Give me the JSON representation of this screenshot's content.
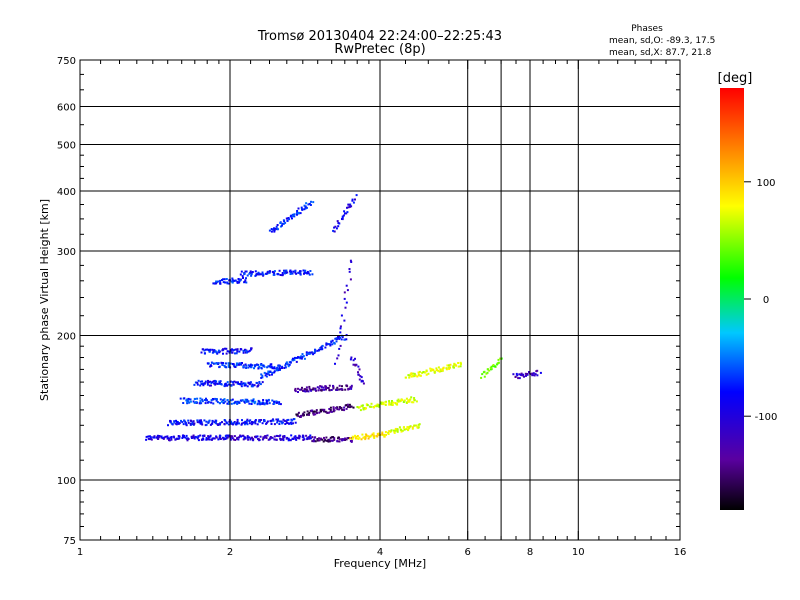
{
  "chart_data": {
    "type": "scatter",
    "title": "Tromsø 20130404 22:24:00–22:25:43",
    "subtitle": "RwPretec (8p)",
    "xlabel": "Frequency [MHz]",
    "ylabel": "Stationary phase Virtual Height [km]",
    "x_scale": "log",
    "y_scale": "log",
    "xlim": [
      1,
      16
    ],
    "ylim": [
      75,
      750
    ],
    "x_ticks": [
      1,
      2,
      4,
      6,
      8,
      10,
      16
    ],
    "x_tick_labels": [
      "1",
      "2",
      "4",
      "6",
      "8",
      "10",
      "16"
    ],
    "x_gridlines": [
      2,
      4,
      6,
      7,
      8,
      10
    ],
    "y_ticks": [
      75,
      100,
      200,
      300,
      400,
      500,
      600,
      750
    ],
    "y_tick_labels": [
      "75",
      "100",
      "200",
      "300",
      "400",
      "500",
      "600",
      "750"
    ],
    "y_gridlines": [
      100,
      200,
      300,
      400,
      500,
      600
    ],
    "grid": true,
    "stats": {
      "heading": "Phases",
      "line_o": "mean, sd,O: -89.3, 17.5",
      "line_x": "mean, sd,X:  87.7, 21.8"
    },
    "colorbar": {
      "label": "[deg]",
      "range": [
        -180,
        180
      ],
      "ticks": [
        100,
        0,
        -100
      ],
      "tick_labels": [
        "100",
        "0",
        "-100"
      ],
      "colormap": "rainbow (black-purple-blue-cyan-green-yellow-red)"
    },
    "traces": [
      {
        "f0": 1.35,
        "f1": 1.98,
        "h0": 123,
        "h1": 123,
        "phase": -112
      },
      {
        "f0": 1.98,
        "f1": 2.9,
        "h0": 123,
        "h1": 123,
        "phase": -118
      },
      {
        "f0": 2.9,
        "f1": 3.5,
        "h0": 122,
        "h1": 122,
        "phase": -145
      },
      {
        "f0": 3.5,
        "f1": 4.1,
        "h0": 123,
        "h1": 125,
        "phase": 92
      },
      {
        "f0": 4.1,
        "f1": 4.8,
        "h0": 126,
        "h1": 131,
        "phase": 72
      },
      {
        "f0": 1.5,
        "f1": 2.7,
        "h0": 132,
        "h1": 133,
        "phase": -100
      },
      {
        "f0": 2.7,
        "f1": 3.5,
        "h0": 137,
        "h1": 143,
        "phase": -150
      },
      {
        "f0": 3.6,
        "f1": 4.7,
        "h0": 142,
        "h1": 148,
        "phase": 65
      },
      {
        "f0": 1.6,
        "f1": 2.5,
        "h0": 147,
        "h1": 146,
        "phase": -88
      },
      {
        "f0": 2.7,
        "f1": 3.5,
        "h0": 155,
        "h1": 157,
        "phase": -140
      },
      {
        "f0": 1.7,
        "f1": 2.3,
        "h0": 160,
        "h1": 159,
        "phase": -98
      },
      {
        "f0": 1.8,
        "f1": 2.5,
        "h0": 175,
        "h1": 173,
        "phase": -92
      },
      {
        "f0": 1.75,
        "f1": 2.2,
        "h0": 186,
        "h1": 187,
        "phase": -100
      },
      {
        "f0": 2.3,
        "f1": 3.4,
        "h0": 165,
        "h1": 200,
        "phase": -92
      },
      {
        "f0": 2.1,
        "f1": 2.9,
        "h0": 270,
        "h1": 272,
        "phase": -97
      },
      {
        "f0": 1.85,
        "f1": 2.15,
        "h0": 260,
        "h1": 262,
        "phase": -92
      },
      {
        "f0": 3.25,
        "f1": 3.5,
        "h0": 175,
        "h1": 290,
        "phase": -118
      },
      {
        "f0": 2.4,
        "f1": 2.9,
        "h0": 330,
        "h1": 380,
        "phase": -92
      },
      {
        "f0": 3.2,
        "f1": 3.55,
        "h0": 330,
        "h1": 390,
        "phase": -105
      },
      {
        "f0": 3.5,
        "f1": 3.7,
        "h0": 180,
        "h1": 160,
        "phase": -128
      },
      {
        "f0": 4.5,
        "f1": 5.8,
        "h0": 165,
        "h1": 175,
        "phase": 70
      },
      {
        "f0": 6.4,
        "f1": 7.0,
        "h0": 165,
        "h1": 180,
        "phase": 30
      },
      {
        "f0": 7.4,
        "f1": 8.3,
        "h0": 165,
        "h1": 168,
        "phase": -125
      }
    ]
  }
}
